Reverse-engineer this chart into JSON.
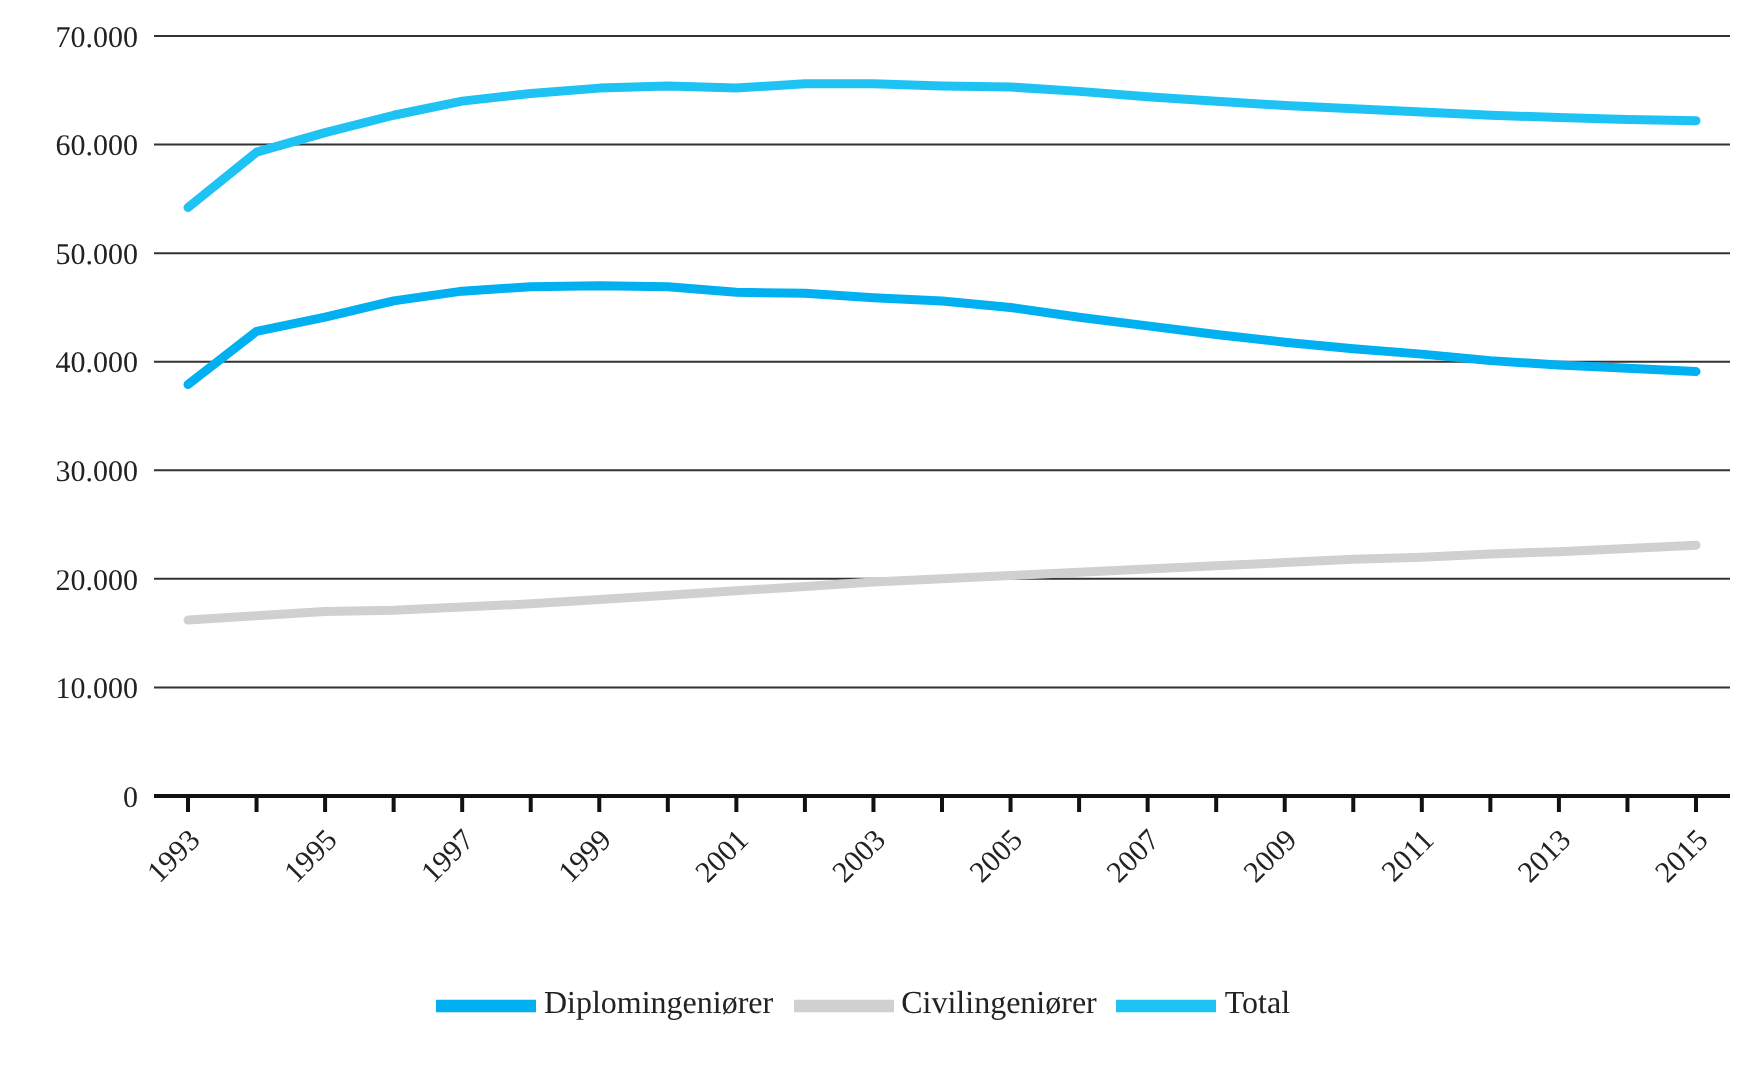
{
  "chart_data": {
    "type": "line",
    "categories": [
      "1993",
      null,
      "1995",
      null,
      "1997",
      null,
      "1999",
      null,
      "2001",
      null,
      "2003",
      null,
      "2005",
      null,
      "2007",
      null,
      "2009",
      null,
      "2011",
      null,
      "2013",
      null,
      "2015"
    ],
    "series": [
      {
        "name": "Diplomingeniører",
        "color": "#00b0f0",
        "values": [
          37900,
          42800,
          44100,
          45600,
          46500,
          46900,
          47000,
          46900,
          46400,
          46300,
          45900,
          45600,
          45000,
          44100,
          43300,
          42500,
          41800,
          41200,
          40700,
          40100,
          39700,
          39400,
          39100
        ]
      },
      {
        "name": "Civilingeniører",
        "color": "#d0d0d0",
        "values": [
          16200,
          16600,
          17000,
          17100,
          17400,
          17700,
          18100,
          18500,
          18900,
          19300,
          19700,
          20000,
          20300,
          20600,
          20900,
          21200,
          21500,
          21800,
          22000,
          22300,
          22500,
          22800,
          23100
        ]
      },
      {
        "name": "Total",
        "color": "#1fc3f3",
        "values": [
          54200,
          59300,
          61100,
          62700,
          64000,
          64700,
          65200,
          65400,
          65200,
          65600,
          65600,
          65400,
          65300,
          64900,
          64400,
          64000,
          63600,
          63300,
          63000,
          62700,
          62500,
          62300,
          62200
        ]
      }
    ],
    "ylim": [
      0,
      70000
    ],
    "yticks": [
      {
        "value": 0,
        "label": "0"
      },
      {
        "value": 10000,
        "label": "10.000"
      },
      {
        "value": 20000,
        "label": "20.000"
      },
      {
        "value": 30000,
        "label": "30.000"
      },
      {
        "value": 40000,
        "label": "40.000"
      },
      {
        "value": 50000,
        "label": "50.000"
      },
      {
        "value": 60000,
        "label": "60.000"
      },
      {
        "value": 70000,
        "label": "70.000"
      }
    ],
    "grid": "y",
    "legend": "bottom",
    "marker": "none",
    "line_style": "solid"
  }
}
